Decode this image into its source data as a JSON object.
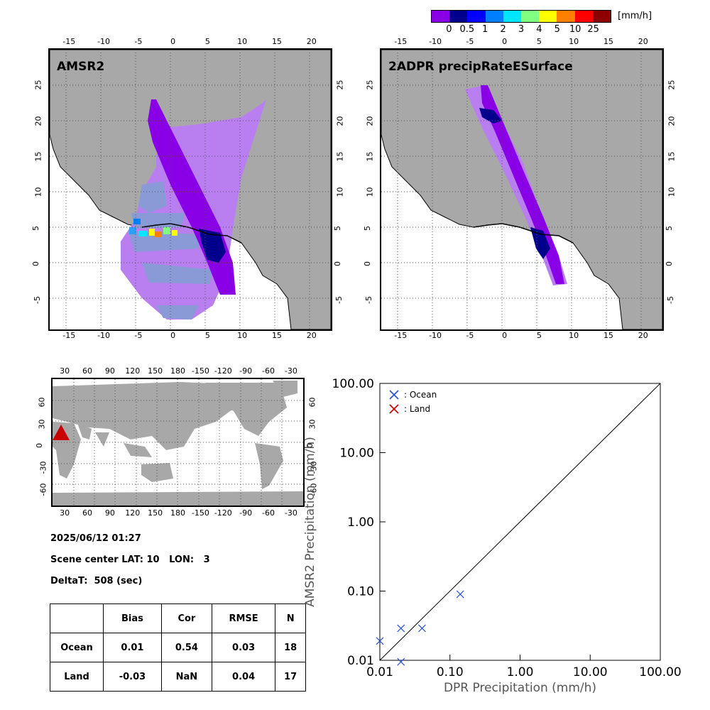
{
  "colorbar": {
    "unit": "[mm/h]",
    "labels": [
      "0",
      "0.5",
      "1",
      "2",
      "3",
      "4",
      "5",
      "10",
      "25"
    ],
    "colors": [
      "#8a00e6",
      "#00008c",
      "#0000ff",
      "#0080ff",
      "#00e6ff",
      "#80ff80",
      "#ffff00",
      "#ff8000",
      "#ff0000",
      "#8c0000"
    ]
  },
  "map_left": {
    "title": "AMSR2",
    "top_ticks": [
      "-15",
      "-10",
      "-5",
      "0",
      "5",
      "10",
      "15",
      "20"
    ],
    "bottom_ticks": [
      "-15",
      "-10",
      "-5",
      "0",
      "5",
      "10",
      "15",
      "20"
    ],
    "left_ticks": [
      "25",
      "20",
      "15",
      "10",
      "5",
      "0",
      "-5"
    ],
    "right_ticks": [
      "25",
      "20",
      "15",
      "10",
      "5",
      "0",
      "-5"
    ]
  },
  "map_right": {
    "title": "2ADPR precipRateESurface",
    "top_ticks": [
      "-15",
      "-10",
      "-5",
      "0",
      "5",
      "10",
      "15",
      "20"
    ],
    "bottom_ticks": [
      "-15",
      "-10",
      "-5",
      "0",
      "5",
      "10",
      "15",
      "20"
    ],
    "left_ticks": [
      "25",
      "20",
      "15",
      "10",
      "5",
      "0",
      "-5"
    ],
    "right_ticks": [
      "25",
      "20",
      "15",
      "10",
      "5",
      "0",
      "-5"
    ]
  },
  "world_map": {
    "top_ticks": [
      "30",
      "60",
      "90",
      "120",
      "150",
      "180",
      "-150",
      "-120",
      "-90",
      "-60",
      "-30"
    ],
    "bottom_ticks": [
      "30",
      "60",
      "90",
      "120",
      "150",
      "180",
      "-150",
      "-120",
      "-90",
      "-60",
      "-30"
    ],
    "left_ticks": [
      "60",
      "30",
      "0",
      "-30",
      "-60"
    ],
    "right_ticks": [
      "60",
      "30",
      "0",
      "-30",
      "-60"
    ],
    "marker_color": "#c80000"
  },
  "info": {
    "datetime": "2025/06/12 01:27",
    "scene_center": "Scene center LAT: 10   LON:   3",
    "deltat": "DeltaT:  508 (sec)"
  },
  "stats_table": {
    "headers": [
      "",
      "Bias",
      "Cor",
      "RMSE",
      "N"
    ],
    "rows": [
      [
        "Ocean",
        "0.01",
        "0.54",
        "0.03",
        "18"
      ],
      [
        "Land",
        "-0.03",
        "NaN",
        "0.04",
        "17"
      ]
    ]
  },
  "chart_data": {
    "type": "scatter",
    "xlabel": "DPR Precipitation (mm/h)",
    "ylabel": "AMSR2 Precipitation (mm/h)",
    "xscale": "log",
    "yscale": "log",
    "xlim": [
      0.01,
      100
    ],
    "ylim": [
      0.01,
      100
    ],
    "xticks": [
      "0.01",
      "0.10",
      "1.00",
      "10.00",
      "100.00"
    ],
    "yticks": [
      "0.01",
      "0.10",
      "1.00",
      "10.00",
      "100.00"
    ],
    "series": [
      {
        "name": ": Ocean",
        "color": "#2850d2",
        "marker": "x",
        "x": [
          0.01,
          0.02,
          0.02,
          0.04,
          0.14
        ],
        "y": [
          0.019,
          0.029,
          0.0095,
          0.029,
          0.09
        ]
      },
      {
        "name": ": Land",
        "color": "#c80000",
        "marker": "x",
        "x": [],
        "y": []
      }
    ],
    "reference_line": "1:1",
    "legend_position": "top-left"
  }
}
